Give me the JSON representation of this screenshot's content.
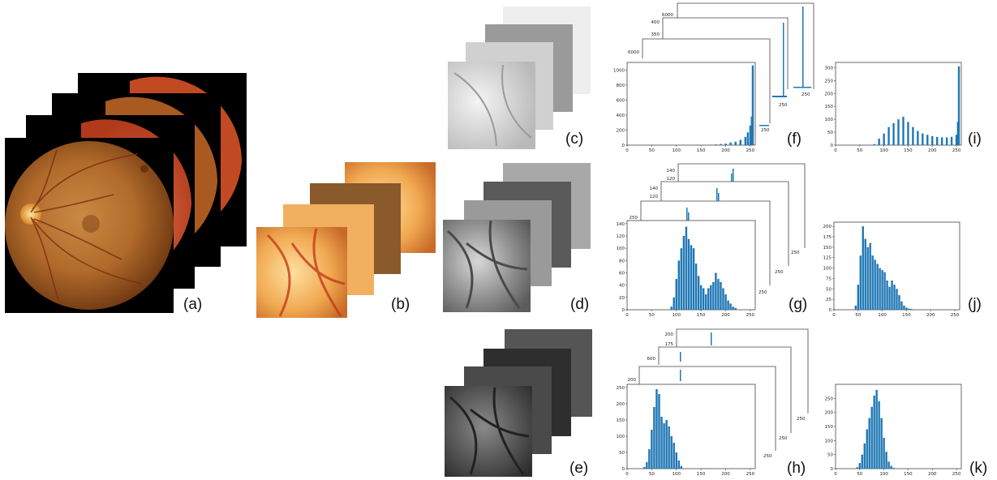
{
  "panel_labels": {
    "a": "(a)",
    "b": "(b)",
    "c": "(c)",
    "d": "(d)",
    "e": "(e)",
    "f": "(f)",
    "g": "(g)",
    "h": "(h)",
    "i": "(i)",
    "j": "(j)",
    "k": "(k)"
  },
  "colors": {
    "hist": "#1f77b4",
    "frame": "#444444",
    "fundus_dark": "#000000"
  },
  "chart_data": [
    {
      "panel": "f",
      "type": "bar",
      "x_ticks": [
        "0",
        "50",
        "100",
        "150",
        "200",
        "250"
      ],
      "y_ticks": [
        "0",
        "200",
        "400",
        "600",
        "800",
        "1000"
      ],
      "xlim": [
        0,
        260
      ],
      "ylim": [
        0,
        1100
      ],
      "values": [
        [
          150,
          2
        ],
        [
          170,
          6
        ],
        [
          180,
          10
        ],
        [
          190,
          15
        ],
        [
          200,
          20
        ],
        [
          210,
          35
        ],
        [
          220,
          45
        ],
        [
          230,
          70
        ],
        [
          240,
          110
        ],
        [
          245,
          170
        ],
        [
          250,
          260
        ],
        [
          253,
          380
        ],
        [
          255,
          1060
        ]
      ],
      "back_stack_y_ticks": [
        [
          "6000"
        ],
        [
          "350",
          "400"
        ],
        [
          "6000"
        ]
      ],
      "back_stack_x_ticks": [
        "250",
        "250",
        "250"
      ]
    },
    {
      "panel": "i",
      "type": "bar",
      "x_ticks": [
        "0",
        "50",
        "100",
        "150",
        "200",
        "250"
      ],
      "y_ticks": [
        "0",
        "50",
        "100",
        "150",
        "200",
        "250",
        "300"
      ],
      "xlim": [
        0,
        260
      ],
      "ylim": [
        0,
        320
      ],
      "values": [
        [
          80,
          4
        ],
        [
          90,
          25
        ],
        [
          100,
          45
        ],
        [
          110,
          70
        ],
        [
          120,
          85
        ],
        [
          130,
          100
        ],
        [
          140,
          110
        ],
        [
          150,
          90
        ],
        [
          160,
          70
        ],
        [
          170,
          55
        ],
        [
          180,
          45
        ],
        [
          190,
          40
        ],
        [
          200,
          35
        ],
        [
          210,
          32
        ],
        [
          220,
          30
        ],
        [
          230,
          30
        ],
        [
          240,
          32
        ],
        [
          250,
          40
        ],
        [
          253,
          90
        ],
        [
          255,
          305
        ]
      ]
    },
    {
      "panel": "g",
      "type": "bar",
      "x_ticks": [
        "0",
        "50",
        "100",
        "150",
        "200",
        "250"
      ],
      "y_ticks": [
        "0",
        "20",
        "40",
        "60",
        "80",
        "100",
        "120",
        "140"
      ],
      "xlim": [
        0,
        260
      ],
      "ylim": [
        0,
        145
      ],
      "values": [
        [
          90,
          5
        ],
        [
          95,
          20
        ],
        [
          100,
          50
        ],
        [
          105,
          80
        ],
        [
          110,
          100
        ],
        [
          115,
          120
        ],
        [
          120,
          135
        ],
        [
          125,
          115
        ],
        [
          130,
          105
        ],
        [
          135,
          100
        ],
        [
          140,
          75
        ],
        [
          145,
          55
        ],
        [
          150,
          40
        ],
        [
          155,
          35
        ],
        [
          160,
          25
        ],
        [
          165,
          35
        ],
        [
          170,
          40
        ],
        [
          175,
          45
        ],
        [
          180,
          60
        ],
        [
          185,
          50
        ],
        [
          190,
          45
        ],
        [
          195,
          35
        ],
        [
          200,
          25
        ],
        [
          205,
          15
        ],
        [
          210,
          10
        ],
        [
          215,
          5
        ],
        [
          220,
          3
        ]
      ],
      "back_stack_y_ticks": [
        [
          "120",
          "140"
        ],
        [
          "120",
          "140"
        ],
        [
          "250"
        ]
      ],
      "back_stack_x_ticks": [
        "250",
        "250",
        "250"
      ]
    },
    {
      "panel": "j",
      "type": "bar",
      "x_ticks": [
        "0",
        "50",
        "100",
        "150",
        "200",
        "250"
      ],
      "y_ticks": [
        "0",
        "25",
        "50",
        "75",
        "100",
        "125",
        "150",
        "175",
        "200"
      ],
      "xlim": [
        0,
        260
      ],
      "ylim": [
        0,
        210
      ],
      "values": [
        [
          45,
          10
        ],
        [
          50,
          60
        ],
        [
          55,
          130
        ],
        [
          60,
          200
        ],
        [
          65,
          170
        ],
        [
          70,
          150
        ],
        [
          75,
          160
        ],
        [
          80,
          130
        ],
        [
          85,
          120
        ],
        [
          90,
          110
        ],
        [
          95,
          100
        ],
        [
          100,
          95
        ],
        [
          105,
          90
        ],
        [
          110,
          70
        ],
        [
          115,
          55
        ],
        [
          120,
          70
        ],
        [
          125,
          60
        ],
        [
          130,
          50
        ],
        [
          135,
          35
        ],
        [
          140,
          20
        ],
        [
          145,
          10
        ],
        [
          150,
          5
        ],
        [
          155,
          3
        ],
        [
          160,
          2
        ]
      ]
    },
    {
      "panel": "h",
      "type": "bar",
      "x_ticks": [
        "0",
        "50",
        "100",
        "150",
        "200",
        "250"
      ],
      "y_ticks": [
        "0",
        "50",
        "100",
        "150",
        "200",
        "250"
      ],
      "xlim": [
        0,
        260
      ],
      "ylim": [
        0,
        260
      ],
      "values": [
        [
          35,
          5
        ],
        [
          40,
          20
        ],
        [
          45,
          60
        ],
        [
          50,
          120
        ],
        [
          55,
          190
        ],
        [
          60,
          245
        ],
        [
          65,
          230
        ],
        [
          70,
          160
        ],
        [
          75,
          140
        ],
        [
          80,
          150
        ],
        [
          85,
          130
        ],
        [
          90,
          100
        ],
        [
          95,
          80
        ],
        [
          100,
          50
        ],
        [
          105,
          25
        ],
        [
          110,
          8
        ]
      ],
      "back_stack_y_ticks": [
        [
          "175",
          "200"
        ],
        [
          "600"
        ],
        [
          "200"
        ]
      ],
      "back_stack_x_ticks": [
        "250",
        "250",
        "250"
      ]
    },
    {
      "panel": "k",
      "type": "bar",
      "x_ticks": [
        "0",
        "50",
        "100",
        "150",
        "200",
        "250"
      ],
      "y_ticks": [
        "0",
        "50",
        "100",
        "150",
        "200",
        "250"
      ],
      "xlim": [
        0,
        260
      ],
      "ylim": [
        0,
        300
      ],
      "values": [
        [
          45,
          5
        ],
        [
          50,
          20
        ],
        [
          55,
          50
        ],
        [
          60,
          90
        ],
        [
          65,
          140
        ],
        [
          70,
          180
        ],
        [
          75,
          220
        ],
        [
          80,
          260
        ],
        [
          85,
          280
        ],
        [
          90,
          240
        ],
        [
          95,
          180
        ],
        [
          100,
          110
        ],
        [
          105,
          60
        ],
        [
          110,
          25
        ],
        [
          115,
          10
        ],
        [
          120,
          3
        ]
      ]
    }
  ]
}
